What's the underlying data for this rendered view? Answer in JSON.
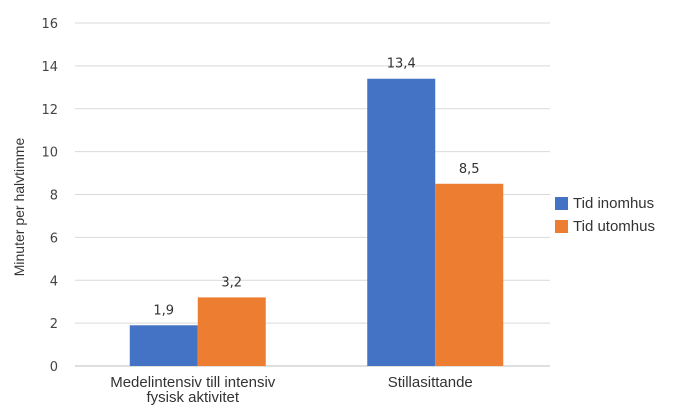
{
  "chart_data": {
    "type": "bar",
    "categories": [
      "Medelintensiv till intensiv fysisk aktivitet",
      "Stillasittande"
    ],
    "category_lines": [
      [
        "Medelintensiv till intensiv",
        "fysisk aktivitet"
      ],
      [
        "Stillasittande"
      ]
    ],
    "series": [
      {
        "name": "Tid inomhus",
        "values": [
          1.9,
          13.4
        ],
        "labels": [
          "1,9",
          "13,4"
        ],
        "color": "#4472c4"
      },
      {
        "name": "Tid utomhus",
        "values": [
          3.2,
          8.5
        ],
        "labels": [
          "3,2",
          "8,5"
        ],
        "color": "#ed7d31"
      }
    ],
    "ylabel": "Minuter per halvtimme",
    "ylim": [
      0,
      16
    ],
    "yticks": [
      0,
      2,
      4,
      6,
      8,
      10,
      12,
      14,
      16
    ],
    "grid": true,
    "legend_position": "right"
  }
}
